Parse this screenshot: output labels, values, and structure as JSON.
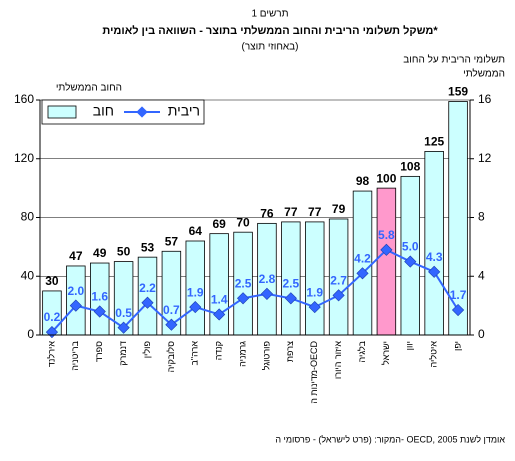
{
  "chart_data": {
    "type": "bar_line",
    "chart_label": "תרשים 1",
    "title": "משקל תשלומי הריבית והחוב הממשלתי בתוצר - השוואה בין לאומית*",
    "subtitle": "(באחוזי תוצר)",
    "y_label": "החוב הממשלתי",
    "y2_label": [
      "תשלומי הריבית על החוב",
      "הממשלתי"
    ],
    "source": "המקור: (פרט לישראל) - פרסומי ה- OECD, אומדן לשנת 2005",
    "categories": [
      "אירלנד",
      "בריטניה",
      "ספרד",
      "דנמרק",
      "פולין",
      "סלובקיה",
      "ארה\"ב",
      "קנדה",
      "גרמניה",
      "פורטוגל",
      "צרפת",
      "מדינות ה-OECD",
      "איזור היורו",
      "בלגיה",
      "ישראל",
      "יוון",
      "איטליה",
      "יפן"
    ],
    "series": [
      {
        "name": "חוב",
        "type": "bar",
        "color": "#ccffff",
        "colors": [
          "#ccffff",
          "#ccffff",
          "#ccffff",
          "#ccffff",
          "#ccffff",
          "#ccffff",
          "#ccffff",
          "#ccffff",
          "#ccffff",
          "#ccffff",
          "#ccffff",
          "#ccffff",
          "#ccffff",
          "#ccffff",
          "#ff99cc",
          "#ccffff",
          "#ccffff",
          "#ccffff"
        ],
        "values": [
          30,
          47,
          49,
          50,
          53,
          57,
          64,
          69,
          70,
          76,
          77,
          77,
          79,
          98,
          100,
          108,
          125,
          159
        ]
      },
      {
        "name": "ריבית",
        "type": "line",
        "axis": "y2",
        "color": "#3366ff",
        "values": [
          0.2,
          2,
          1.6,
          0.5,
          2.2,
          0.7,
          1.9,
          1.4,
          2.5,
          2.8,
          2.5,
          1.9,
          2.7,
          4.2,
          5.8,
          5,
          4.3,
          1.7
        ],
        "value_labels": [
          "0.2",
          "2.0",
          "1.6",
          "0.5",
          "2.2",
          "0.7",
          "1.9",
          "1.4",
          "2.5",
          "2.8",
          "2.5",
          "1.9",
          "2.7",
          "4.2",
          "5.8",
          "5.0",
          "4.3",
          "1.7"
        ]
      }
    ],
    "ylim": [
      0,
      160
    ],
    "yticks": [
      0,
      40,
      80,
      120,
      160
    ],
    "y2lim": [
      0,
      16
    ],
    "y2ticks": [
      0,
      4,
      8,
      12,
      16
    ],
    "grid": true
  }
}
